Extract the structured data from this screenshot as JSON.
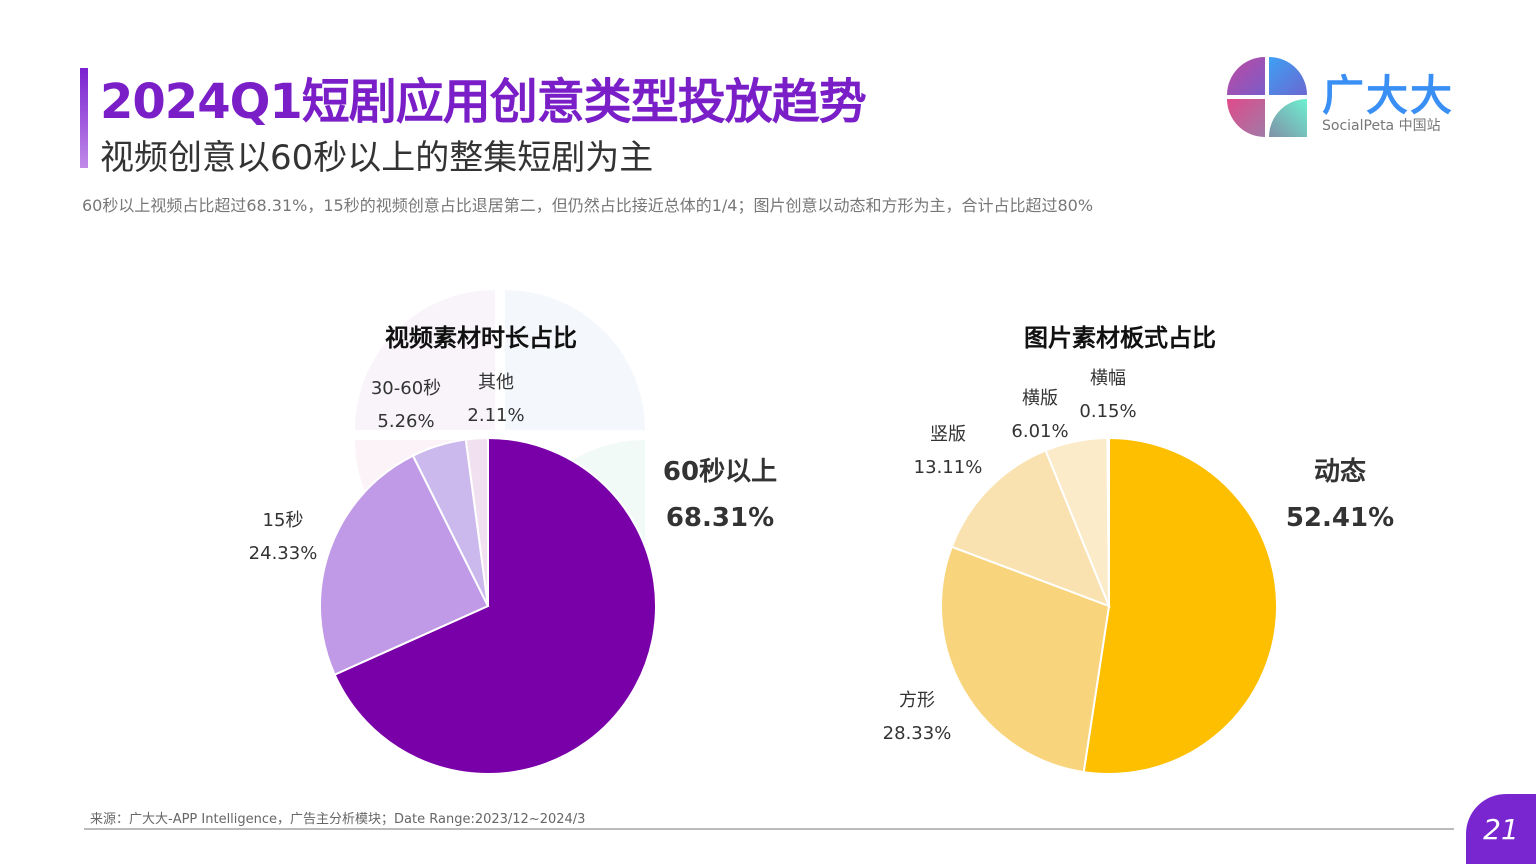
{
  "header": {
    "title": "2024Q1短剧应用创意类型投放趋势",
    "subtitle": "视频创意以60秒以上的整集短剧为主",
    "description": "60秒以上视频占比超过68.31%，15秒的视频创意占比退居第二，但仍然占比接近总体的1/4；图片创意以动态和方形为主，合计占比超过80%"
  },
  "logo": {
    "name": "广大大",
    "sub": "SocialPeta 中国站"
  },
  "watermark": {
    "main": "广大大",
    "sub": "SocialPeta 中国站"
  },
  "footer": {
    "source": "来源：广大大-APP Intelligence，广告主分析模块；Date Range:2023/12~2024/3",
    "page": "21"
  },
  "chart_data": [
    {
      "type": "pie",
      "title": "视频素材时长占比",
      "start": "top",
      "direction": "clockwise",
      "slices": [
        {
          "label": "60秒以上",
          "value": 68.31,
          "display": "68.31%",
          "color": "#7900a8"
        },
        {
          "label": "15秒",
          "value": 24.33,
          "display": "24.33%",
          "color": "#c09ae6"
        },
        {
          "label": "30-60秒",
          "value": 5.26,
          "display": "5.26%",
          "color": "#cbb8ec"
        },
        {
          "label": "其他",
          "value": 2.11,
          "display": "2.11%",
          "color": "#f1e1f0"
        }
      ]
    },
    {
      "type": "pie",
      "title": "图片素材板式占比",
      "start": "top",
      "direction": "clockwise",
      "slices": [
        {
          "label": "动态",
          "value": 52.41,
          "display": "52.41%",
          "color": "#fdbf00"
        },
        {
          "label": "方形",
          "value": 28.33,
          "display": "28.33%",
          "color": "#f8d47c"
        },
        {
          "label": "竖版",
          "value": 13.11,
          "display": "13.11%",
          "color": "#f9e2b0"
        },
        {
          "label": "横版",
          "value": 6.01,
          "display": "6.01%",
          "color": "#fbebc9"
        },
        {
          "label": "横幅",
          "value": 0.15,
          "display": "0.15%",
          "color": "#fdf3de"
        }
      ]
    }
  ]
}
